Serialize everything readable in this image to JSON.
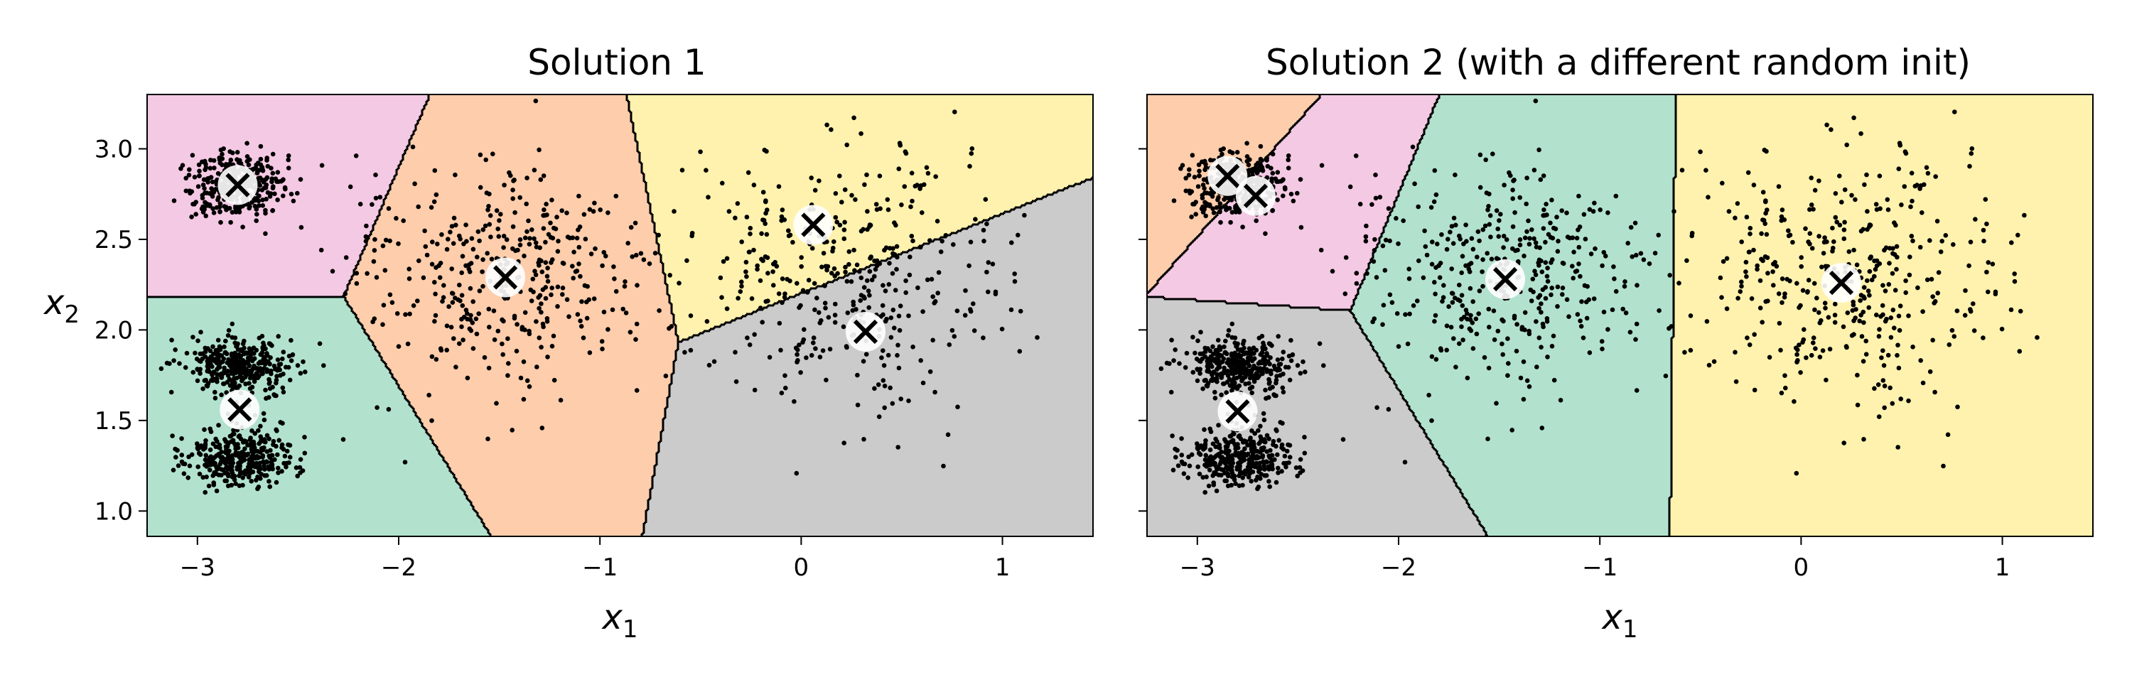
{
  "chart_data": [
    {
      "type": "scatter",
      "title": "Solution 1",
      "xlabel": "x",
      "xlabel_sub": "1",
      "ylabel": "x",
      "ylabel_sub": "2",
      "xlim": [
        -3.25,
        1.45
      ],
      "ylim": [
        0.86,
        3.3
      ],
      "xticks": [
        -3,
        -2,
        -1,
        0,
        1
      ],
      "xtick_labels": [
        "−3",
        "−2",
        "−1",
        "0",
        "1"
      ],
      "yticks": [
        1.0,
        1.5,
        2.0,
        2.5,
        3.0
      ],
      "ytick_labels": [
        "1.0",
        "1.5",
        "2.0",
        "2.5",
        "3.0"
      ],
      "show_yticklabels": true,
      "grid": false,
      "centroids": [
        {
          "x": -2.8,
          "y": 2.8
        },
        {
          "x": -2.79,
          "y": 1.56
        },
        {
          "x": -1.47,
          "y": 2.29
        },
        {
          "x": 0.06,
          "y": 2.58
        },
        {
          "x": 0.32,
          "y": 1.99
        }
      ],
      "region_colors": [
        "#f4c9e3",
        "#b2e2cd",
        "#fdcdac",
        "#fef2ae",
        "#cbcbcb"
      ],
      "clusters": [
        {
          "x": -2.8,
          "y": 2.8,
          "sx": 0.12,
          "sy": 0.1,
          "n": 350
        },
        {
          "x": -2.8,
          "y": 1.8,
          "sx": 0.14,
          "sy": 0.08,
          "n": 350
        },
        {
          "x": -2.8,
          "y": 1.3,
          "sx": 0.14,
          "sy": 0.08,
          "n": 350
        },
        {
          "x": -1.47,
          "y": 2.29,
          "sx": 0.35,
          "sy": 0.3,
          "n": 400
        },
        {
          "x": 0.2,
          "y": 2.3,
          "sx": 0.4,
          "sy": 0.38,
          "n": 400
        }
      ]
    },
    {
      "type": "scatter",
      "title": "Solution 2 (with a different random init)",
      "xlabel": "x",
      "xlabel_sub": "1",
      "xlim": [
        -3.25,
        1.45
      ],
      "ylim": [
        0.86,
        3.3
      ],
      "xticks": [
        -3,
        -2,
        -1,
        0,
        1
      ],
      "xtick_labels": [
        "−3",
        "−2",
        "−1",
        "0",
        "1"
      ],
      "yticks": [
        1.0,
        1.5,
        2.0,
        2.5,
        3.0
      ],
      "ytick_labels": [],
      "show_yticklabels": false,
      "grid": false,
      "centroids": [
        {
          "x": -2.85,
          "y": 2.85
        },
        {
          "x": -2.71,
          "y": 2.74
        },
        {
          "x": -2.8,
          "y": 1.55
        },
        {
          "x": -1.47,
          "y": 2.28
        },
        {
          "x": 0.2,
          "y": 2.26
        }
      ],
      "region_colors": [
        "#fdcdac",
        "#f4c9e3",
        "#cbcbcb",
        "#b2e2cd",
        "#fef2ae"
      ],
      "clusters": [
        {
          "x": -2.8,
          "y": 2.8,
          "sx": 0.12,
          "sy": 0.1,
          "n": 350
        },
        {
          "x": -2.8,
          "y": 1.8,
          "sx": 0.14,
          "sy": 0.08,
          "n": 350
        },
        {
          "x": -2.8,
          "y": 1.3,
          "sx": 0.14,
          "sy": 0.08,
          "n": 350
        },
        {
          "x": -1.47,
          "y": 2.29,
          "sx": 0.35,
          "sy": 0.3,
          "n": 400
        },
        {
          "x": 0.2,
          "y": 2.3,
          "sx": 0.4,
          "sy": 0.38,
          "n": 400
        }
      ]
    }
  ]
}
